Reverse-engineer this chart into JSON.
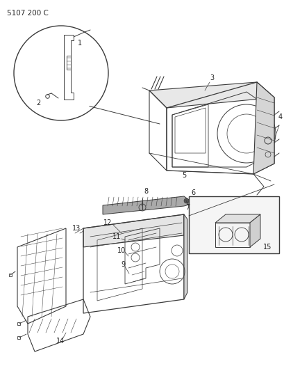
{
  "title": "5107 200 C",
  "bg": "#ffffff",
  "lc": "#3a3a3a",
  "tc": "#222222",
  "fig_w": 4.1,
  "fig_h": 5.33,
  "dpi": 100
}
